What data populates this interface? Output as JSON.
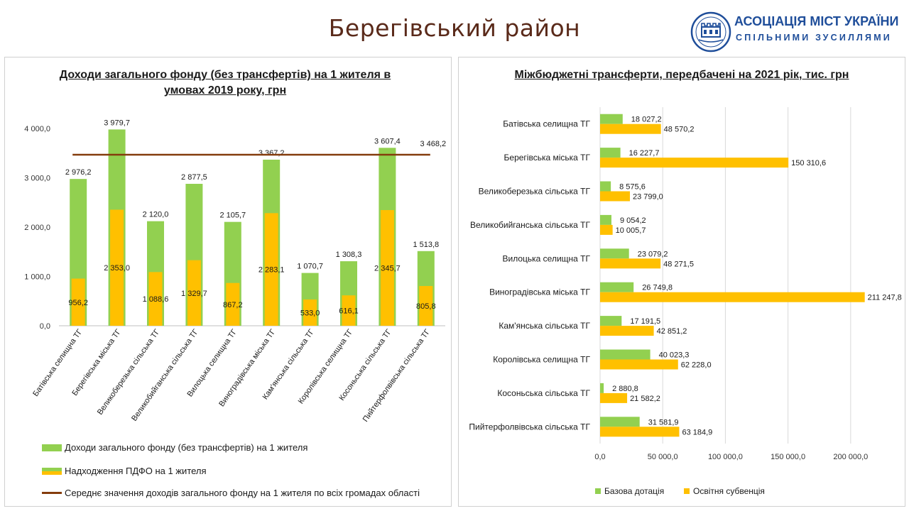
{
  "page": {
    "title": "Берегівський район"
  },
  "logo": {
    "name": "АСОЦІАЦІЯ МІСТ УКРАЇНИ",
    "slogan": "СПІЛЬНИМИ ЗУСИЛЛЯМИ"
  },
  "colors": {
    "green": "#92d050",
    "yellow": "#ffc000",
    "line": "#843c0c",
    "title": "#5a2a1a",
    "logo": "#1f4e9a"
  },
  "chart_data": [
    {
      "type": "bar",
      "title": "Доходи загального фонду (без трансфертів) на 1 жителя в умовах 2019 року, грн",
      "categories": [
        "Батівська селищна ТГ",
        "Берегівська міська ТГ",
        "Великоберезька сільська ТГ",
        "Великобийганська сільська ТГ",
        "Вилоцька селищна ТГ",
        "Виноградівська міська ТГ",
        "Кам'янська сільська ТГ",
        "Королівська селищна ТГ",
        "Косоньська сільська ТГ",
        "Пийтерфолвівська сільська ТГ"
      ],
      "series": [
        {
          "name": "Доходи загального фонду (без трансфертів) на 1 жителя",
          "values": [
            2976.2,
            3979.7,
            2120.0,
            2877.5,
            2105.7,
            3367.2,
            1070.7,
            1308.3,
            3607.4,
            1513.8
          ],
          "labels": [
            "2 976,2",
            "3 979,7",
            "2 120,0",
            "2 877,5",
            "2 105,7",
            "3 367,2",
            "1 070,7",
            "1 308,3",
            "3 607,4",
            "1 513,8"
          ]
        },
        {
          "name": "Надходження ПДФО на 1 жителя",
          "values": [
            956.2,
            2353.0,
            1088.6,
            1329.7,
            867.2,
            2283.1,
            533.0,
            616.1,
            2345.7,
            805.8
          ],
          "labels": [
            "956,2",
            "2 353,0",
            "1 088,6",
            "1 329,7",
            "867,2",
            "2 283,1",
            "533,0",
            "616,1",
            "2 345,7",
            "805,8"
          ]
        },
        {
          "name": "Середнє значення доходів загального фонду на 1 жителя по всіх громадах області",
          "type": "line",
          "value": 3468.2,
          "label": "3 468,2"
        }
      ],
      "ylim": [
        0,
        4000
      ],
      "yticks": [
        0,
        1000,
        2000,
        3000,
        4000
      ],
      "ytick_labels": [
        "0,0",
        "1 000,0",
        "2 000,0",
        "3 000,0",
        "4 000,0"
      ],
      "grid": false,
      "legend": "bottom"
    },
    {
      "type": "bar",
      "orientation": "horizontal",
      "title": "Міжбюджетні трансферти, передбачені на 2021 рік, тис. грн",
      "categories": [
        "Батівська селищна ТГ",
        "Берегівська міська ТГ",
        "Великоберезька сільська ТГ",
        "Великобийганська сільська ТГ",
        "Вилоцька селищна ТГ",
        "Виноградівська міська ТГ",
        "Кам'янська сільська ТГ",
        "Королівська селищна ТГ",
        "Косоньська сільська ТГ",
        "Пийтерфолвівська сільська ТГ"
      ],
      "series": [
        {
          "name": "Базова дотація",
          "values": [
            18027.2,
            16227.7,
            8575.6,
            9054.2,
            23079.2,
            26749.8,
            17191.5,
            40023.3,
            2880.8,
            31581.9
          ],
          "labels": [
            "18 027,2",
            "16 227,7",
            "8 575,6",
            "9 054,2",
            "23 079,2",
            "26 749,8",
            "17 191,5",
            "40 023,3",
            "2 880,8",
            "31 581,9"
          ]
        },
        {
          "name": "Освітня субвенція",
          "values": [
            48570.2,
            150310.6,
            23799.0,
            10005.7,
            48271.5,
            211247.8,
            42851.2,
            62228.0,
            21582.2,
            63184.9
          ],
          "labels": [
            "48 570,2",
            "150 310,6",
            "23 799,0",
            "10 005,7",
            "48 271,5",
            "211 247,8",
            "42 851,2",
            "62 228,0",
            "21 582,2",
            "63 184,9"
          ]
        }
      ],
      "xlim": [
        0,
        212000
      ],
      "xticks": [
        0,
        50000,
        100000,
        150000,
        200000
      ],
      "xtick_labels": [
        "0,0",
        "50 000,0",
        "100 000,0",
        "150 000,0",
        "200 000,0"
      ],
      "grid": true,
      "legend": "bottom"
    }
  ]
}
